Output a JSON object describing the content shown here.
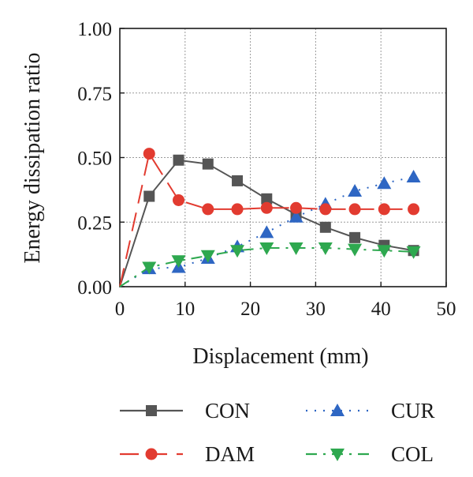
{
  "chart_data": {
    "type": "line",
    "xlabel": "Displacement (mm)",
    "ylabel": "Energy dissipation ratio",
    "xlim": [
      0,
      50
    ],
    "ylim": [
      0,
      1.0
    ],
    "xticks": [
      "0",
      "10",
      "20",
      "30",
      "40",
      "50"
    ],
    "yticks": [
      "0.00",
      "0.25",
      "0.50",
      "0.75",
      "1.00"
    ],
    "grid": true,
    "legend_position": "bottom",
    "series": [
      {
        "name": "CON",
        "color": "#555555",
        "marker": "square",
        "line_style": "solid",
        "x": [
          0,
          4.5,
          9,
          13.5,
          18,
          22.5,
          27,
          31.5,
          36,
          40.5,
          45
        ],
        "y": [
          0,
          0.35,
          0.49,
          0.475,
          0.41,
          0.34,
          0.28,
          0.23,
          0.19,
          0.16,
          0.14
        ]
      },
      {
        "name": "CUR",
        "color": "#2e66c3",
        "marker": "triangle-up",
        "line_style": "dotted",
        "x": [
          0,
          4.5,
          9,
          13.5,
          18,
          22.5,
          27,
          31.5,
          36,
          40.5,
          45
        ],
        "y": [
          0,
          0.07,
          0.075,
          0.11,
          0.155,
          0.21,
          0.27,
          0.32,
          0.37,
          0.4,
          0.425
        ]
      },
      {
        "name": "DAM",
        "color": "#e23b30",
        "marker": "circle",
        "line_style": "dashed",
        "x": [
          0,
          4.5,
          9,
          13.5,
          18,
          22.5,
          27,
          31.5,
          36,
          40.5,
          45
        ],
        "y": [
          0,
          0.515,
          0.335,
          0.3,
          0.3,
          0.305,
          0.305,
          0.3,
          0.3,
          0.3,
          0.3
        ]
      },
      {
        "name": "COL",
        "color": "#2ea84f",
        "marker": "triangle-down",
        "line_style": "dashdot",
        "x": [
          0,
          4.5,
          9,
          13.5,
          18,
          22.5,
          27,
          31.5,
          36,
          40.5,
          45
        ],
        "y": [
          0,
          0.075,
          0.1,
          0.12,
          0.14,
          0.15,
          0.15,
          0.15,
          0.145,
          0.14,
          0.135
        ]
      }
    ]
  }
}
